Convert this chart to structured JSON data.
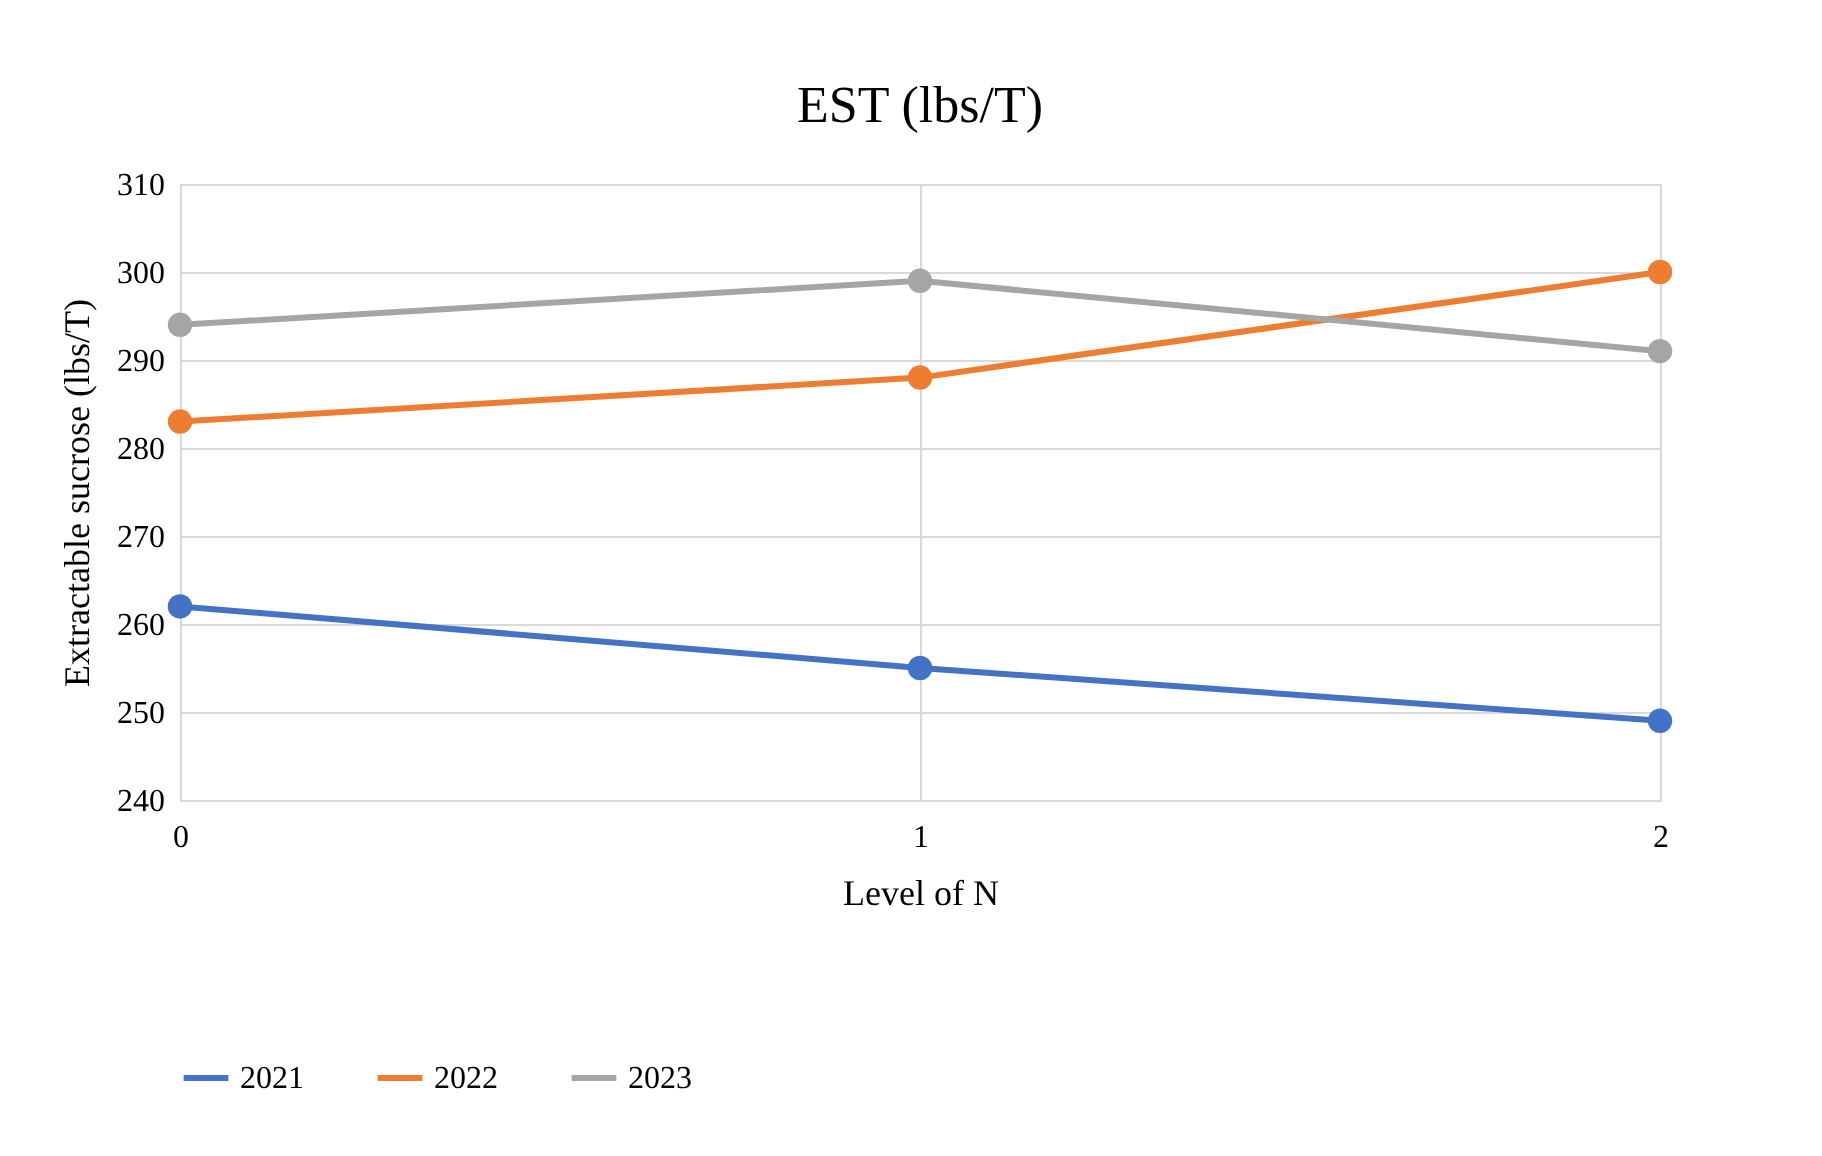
{
  "chart_data": {
    "type": "line",
    "title": "EST (lbs/T)",
    "xlabel": "Level of N",
    "ylabel": "Extractable sucrose (lbs/T)",
    "x": [
      0,
      1,
      2
    ],
    "series": [
      {
        "name": "2021",
        "color": "#4472c4",
        "values": [
          262,
          255,
          249
        ]
      },
      {
        "name": "2022",
        "color": "#ed7d31",
        "values": [
          283,
          288,
          300
        ]
      },
      {
        "name": "2023",
        "color": "#a5a5a5",
        "values": [
          294,
          299,
          291
        ]
      }
    ],
    "xlim": [
      0,
      2
    ],
    "xticks": [
      0,
      1,
      2
    ],
    "ylim": [
      240,
      310
    ],
    "yticks": [
      240,
      250,
      260,
      270,
      280,
      290,
      300,
      310
    ],
    "grid": true,
    "legend": "bottom",
    "marker": "circle",
    "line_style": "solid"
  }
}
